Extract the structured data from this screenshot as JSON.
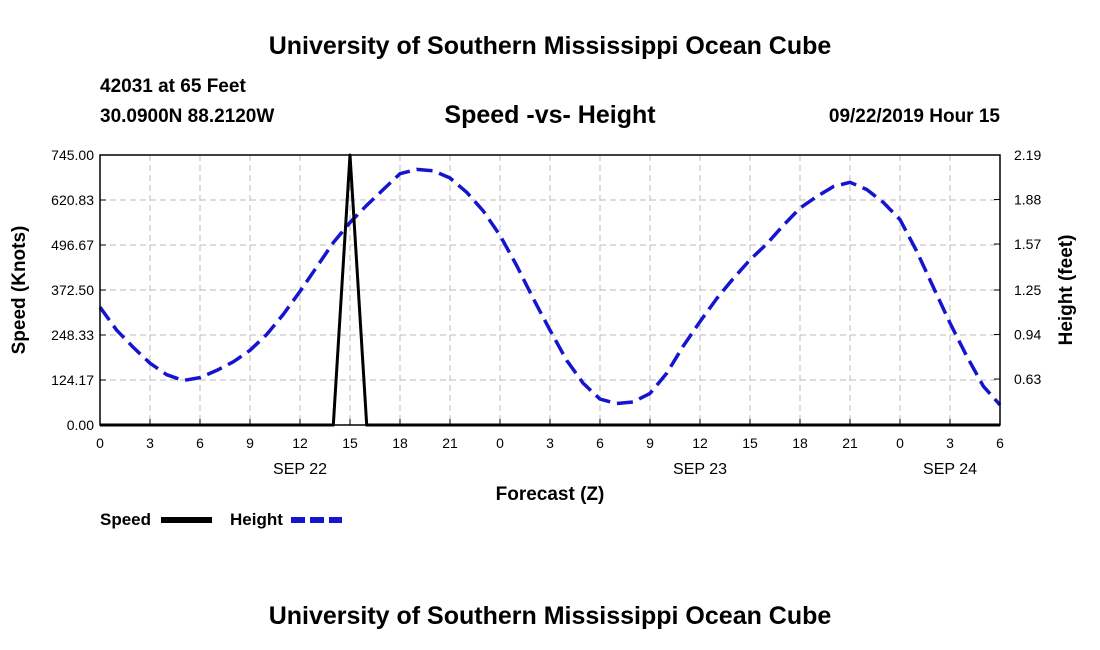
{
  "header": {
    "title_top": "University of Southern Mississippi Ocean Cube",
    "title_bottom": "University of Southern Mississippi Ocean Cube",
    "station": "42031 at 65 Feet",
    "location": "30.0900N 88.2120W",
    "datetime": "09/22/2019 Hour 15"
  },
  "legend": {
    "speed_label": "Speed",
    "height_label": "Height"
  },
  "colors": {
    "speed": "#000000",
    "height": "#1515d0",
    "grid": "#bbbbbb"
  },
  "chart_data": {
    "type": "line",
    "title": "Speed -vs- Height",
    "xlabel": "Forecast (Z)",
    "ylabel_left": "Speed (Knots)",
    "ylabel_right": "Height (feet)",
    "x_range_hours": [
      0,
      54
    ],
    "x_start": "SEP 22 00Z",
    "x_ticks": [
      {
        "hour": 0,
        "label": "0"
      },
      {
        "hour": 3,
        "label": "3"
      },
      {
        "hour": 6,
        "label": "6"
      },
      {
        "hour": 9,
        "label": "9"
      },
      {
        "hour": 12,
        "label": "12"
      },
      {
        "hour": 15,
        "label": "15"
      },
      {
        "hour": 18,
        "label": "18"
      },
      {
        "hour": 21,
        "label": "21"
      },
      {
        "hour": 24,
        "label": "0"
      },
      {
        "hour": 27,
        "label": "3"
      },
      {
        "hour": 30,
        "label": "6"
      },
      {
        "hour": 33,
        "label": "9"
      },
      {
        "hour": 36,
        "label": "12"
      },
      {
        "hour": 39,
        "label": "15"
      },
      {
        "hour": 42,
        "label": "18"
      },
      {
        "hour": 45,
        "label": "21"
      },
      {
        "hour": 48,
        "label": "0"
      },
      {
        "hour": 51,
        "label": "3"
      },
      {
        "hour": 54,
        "label": "6"
      }
    ],
    "date_labels": [
      {
        "hour": 12,
        "label": "SEP 22"
      },
      {
        "hour": 36,
        "label": "SEP 23"
      },
      {
        "hour": 51,
        "label": "SEP 24"
      }
    ],
    "y_left": {
      "range": [
        0,
        745
      ],
      "ticks": [
        {
          "value": 0,
          "label": "0.00"
        },
        {
          "value": 124.17,
          "label": "124.17"
        },
        {
          "value": 248.33,
          "label": "248.33"
        },
        {
          "value": 372.5,
          "label": "372.50"
        },
        {
          "value": 496.67,
          "label": "496.67"
        },
        {
          "value": 620.83,
          "label": "620.83"
        },
        {
          "value": 745,
          "label": "745.00"
        }
      ]
    },
    "y_right": {
      "range": [
        0.31,
        2.19
      ],
      "ticks": [
        {
          "value": 0.63,
          "label": "0.63"
        },
        {
          "value": 0.94,
          "label": "0.94"
        },
        {
          "value": 1.25,
          "label": "1.25"
        },
        {
          "value": 1.57,
          "label": "1.57"
        },
        {
          "value": 1.88,
          "label": "1.88"
        },
        {
          "value": 2.19,
          "label": "2.19"
        }
      ]
    },
    "series": [
      {
        "name": "Speed",
        "axis": "left",
        "style": "solid",
        "x": [
          0,
          14,
          15,
          16,
          54
        ],
        "y": [
          0,
          0,
          745,
          0,
          0
        ]
      },
      {
        "name": "Height",
        "axis": "right",
        "style": "dashed",
        "x": [
          0,
          1,
          2,
          3,
          4,
          5,
          6,
          7,
          8,
          9,
          10,
          11,
          12,
          13,
          14,
          15,
          16,
          17,
          18,
          19,
          20,
          21,
          22,
          23,
          24,
          25,
          26,
          27,
          28,
          29,
          30,
          31,
          32,
          33,
          34,
          35,
          36,
          37,
          38,
          39,
          40,
          41,
          42,
          43,
          44,
          45,
          46,
          47,
          48,
          49,
          50,
          51,
          52,
          53,
          54
        ],
        "y": [
          1.13,
          0.97,
          0.85,
          0.74,
          0.66,
          0.62,
          0.64,
          0.69,
          0.75,
          0.83,
          0.94,
          1.08,
          1.24,
          1.41,
          1.58,
          1.72,
          1.84,
          1.95,
          2.06,
          2.09,
          2.08,
          2.03,
          1.93,
          1.8,
          1.63,
          1.42,
          1.19,
          0.97,
          0.76,
          0.6,
          0.49,
          0.46,
          0.47,
          0.53,
          0.67,
          0.86,
          1.03,
          1.19,
          1.33,
          1.46,
          1.57,
          1.7,
          1.82,
          1.9,
          1.97,
          2.0,
          1.95,
          1.86,
          1.74,
          1.52,
          1.27,
          1.02,
          0.79,
          0.58,
          0.45
        ]
      }
    ]
  }
}
